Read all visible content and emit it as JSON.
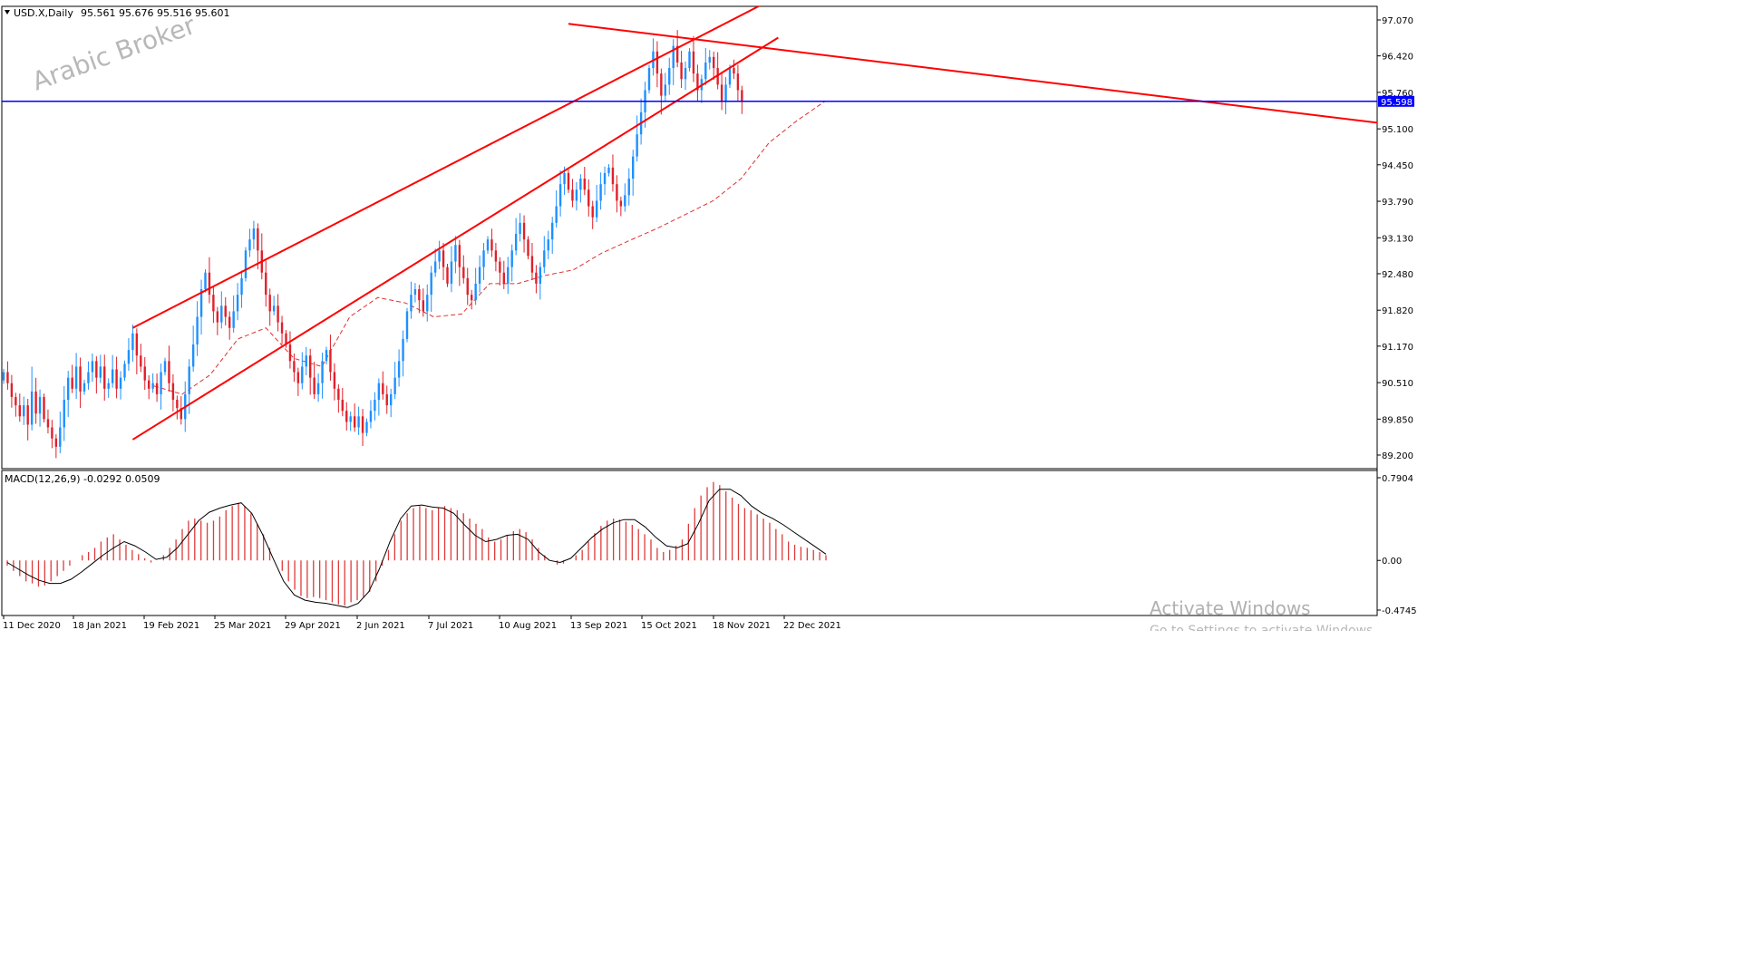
{
  "header": {
    "symbol_info": "USD.X,Daily",
    "ohlc": "95.561 95.676 95.516 95.601"
  },
  "watermark": "Arabic Broker",
  "indicator": {
    "label": "MACD(12,26,9) -0.0292 0.0509"
  },
  "windows_notice": {
    "line1": "Activate Windows",
    "line2": "Go to Settings to activate Windows."
  },
  "colors": {
    "bull_candle": "#1e90ff",
    "bear_candle": "#e0202a",
    "trendline": "#ff0000",
    "horizontal_line": "#0000ff",
    "moving_average": "#e03030",
    "macd_histogram": "#e03a3a",
    "macd_signal": "#000000",
    "price_label_bg": "#0000ff"
  },
  "chart_data": [
    {
      "type": "candlestick",
      "series_label": "USD.X,Daily",
      "open": 95.561,
      "high": 95.676,
      "low": 95.516,
      "close": 95.601,
      "y_ticks": [
        "97.070",
        "96.420",
        "95.760",
        "95.100",
        "94.450",
        "93.790",
        "93.130",
        "92.480",
        "91.820",
        "91.170",
        "90.510",
        "89.850",
        "89.200"
      ],
      "ylim": [
        89.08,
        97.28
      ],
      "x_ticks": [
        "11 Dec 2020",
        "18 Jan 2021",
        "19 Feb 2021",
        "25 Mar 2021",
        "29 Apr 2021",
        "2 Jun 2021",
        "7 Jul 2021",
        "10 Aug 2021",
        "13 Sep 2021",
        "15 Oct 2021",
        "18 Nov 2021",
        "22 Dec 2021"
      ],
      "horizontal_line": {
        "value": 95.598,
        "label": "95.598"
      },
      "trendlines": [
        {
          "name": "channel-upper",
          "points": [
            [
              32,
              91.5
            ],
            [
              192,
              97.5
            ]
          ]
        },
        {
          "name": "channel-lower",
          "points": [
            [
              32,
              89.48
            ],
            [
              192,
              96.75
            ]
          ]
        },
        {
          "name": "descending-resistance",
          "points": [
            [
              140,
              97.0
            ],
            [
              392,
              94.75
            ]
          ]
        }
      ],
      "closes": [
        90.7,
        90.5,
        90.25,
        90.1,
        89.9,
        90.1,
        89.75,
        90.35,
        89.95,
        90.25,
        89.85,
        89.7,
        89.5,
        89.35,
        89.7,
        90.2,
        90.6,
        90.4,
        90.8,
        90.35,
        90.5,
        90.7,
        90.9,
        90.6,
        90.8,
        90.4,
        90.5,
        90.75,
        90.4,
        90.6,
        90.85,
        91.1,
        91.4,
        91.0,
        90.8,
        90.55,
        90.4,
        90.5,
        90.3,
        90.7,
        90.9,
        90.5,
        90.2,
        90.05,
        89.85,
        90.3,
        90.8,
        91.2,
        91.7,
        92.2,
        92.5,
        92.1,
        91.8,
        91.6,
        91.9,
        91.7,
        91.5,
        91.8,
        92.1,
        92.4,
        92.9,
        93.1,
        93.3,
        92.9,
        92.5,
        92.1,
        91.8,
        91.9,
        91.6,
        91.4,
        91.2,
        90.9,
        90.7,
        90.5,
        90.8,
        91.0,
        90.6,
        90.3,
        90.5,
        90.9,
        91.1,
        90.7,
        90.4,
        90.2,
        90.0,
        89.8,
        89.9,
        89.7,
        89.9,
        89.6,
        89.8,
        90.0,
        90.2,
        90.5,
        90.3,
        90.1,
        90.3,
        90.6,
        90.9,
        91.3,
        91.8,
        92.1,
        92.2,
        92.0,
        91.8,
        92.1,
        92.5,
        92.7,
        92.9,
        92.6,
        92.3,
        92.7,
        93.0,
        92.6,
        92.4,
        92.1,
        92.0,
        92.3,
        92.6,
        92.9,
        93.1,
        92.9,
        92.7,
        92.5,
        92.3,
        92.6,
        92.9,
        93.2,
        93.4,
        93.1,
        92.8,
        92.5,
        92.3,
        92.6,
        92.9,
        93.1,
        93.4,
        93.7,
        94.1,
        94.3,
        94.0,
        93.8,
        94.0,
        94.2,
        94.0,
        93.7,
        93.5,
        93.8,
        94.1,
        94.3,
        94.4,
        94.1,
        93.8,
        93.7,
        93.9,
        94.2,
        94.6,
        95.0,
        95.4,
        95.8,
        96.2,
        96.5,
        96.1,
        95.7,
        95.9,
        96.2,
        96.6,
        96.3,
        96.0,
        96.2,
        96.5,
        96.1,
        95.8,
        96.0,
        96.3,
        96.4,
        96.2,
        95.9,
        95.6,
        95.9,
        96.2,
        96.1,
        95.8,
        95.601
      ],
      "ma_values": [
        90.45,
        90.3,
        90.65,
        91.3,
        91.5,
        90.95,
        90.8,
        91.7,
        92.05,
        91.95,
        91.7,
        91.75,
        92.3,
        92.3,
        92.45,
        92.55,
        92.85,
        93.08,
        93.3,
        93.55,
        93.8,
        94.2,
        94.85,
        95.25,
        95.6
      ]
    },
    {
      "type": "bar",
      "series_label": "MACD(12,26,9)",
      "main": -0.0292,
      "signal": 0.0509,
      "y_ticks": [
        "0.7904",
        "0.00",
        "-0.4745"
      ],
      "ylim": [
        -0.48,
        0.8
      ],
      "histogram": [
        -0.05,
        -0.1,
        -0.15,
        -0.2,
        -0.22,
        -0.25,
        -0.24,
        -0.2,
        -0.15,
        -0.1,
        -0.05,
        0.0,
        0.05,
        0.08,
        0.12,
        0.18,
        0.22,
        0.25,
        0.2,
        0.15,
        0.1,
        0.06,
        0.02,
        -0.02,
        0.0,
        0.05,
        0.12,
        0.2,
        0.3,
        0.38,
        0.4,
        0.38,
        0.36,
        0.38,
        0.42,
        0.48,
        0.52,
        0.55,
        0.52,
        0.45,
        0.35,
        0.25,
        0.12,
        0.0,
        -0.1,
        -0.2,
        -0.28,
        -0.34,
        -0.36,
        -0.35,
        -0.36,
        -0.38,
        -0.4,
        -0.42,
        -0.43,
        -0.4,
        -0.38,
        -0.35,
        -0.3,
        -0.2,
        -0.05,
        0.1,
        0.25,
        0.38,
        0.45,
        0.5,
        0.52,
        0.5,
        0.48,
        0.5,
        0.52,
        0.5,
        0.48,
        0.45,
        0.4,
        0.35,
        0.3,
        0.22,
        0.18,
        0.2,
        0.24,
        0.28,
        0.3,
        0.27,
        0.2,
        0.12,
        0.05,
        0.0,
        -0.04,
        -0.03,
        0.0,
        0.05,
        0.1,
        0.18,
        0.26,
        0.33,
        0.38,
        0.4,
        0.39,
        0.37,
        0.34,
        0.3,
        0.25,
        0.2,
        0.12,
        0.08,
        0.1,
        0.14,
        0.2,
        0.35,
        0.5,
        0.62,
        0.7,
        0.75,
        0.72,
        0.66,
        0.6,
        0.54,
        0.5,
        0.48,
        0.44,
        0.4,
        0.36,
        0.3,
        0.25,
        0.18,
        0.15,
        0.13,
        0.12,
        0.1,
        0.08,
        0.05
      ],
      "signal_line": [
        -0.02,
        -0.08,
        -0.14,
        -0.19,
        -0.22,
        -0.22,
        -0.18,
        -0.11,
        -0.03,
        0.05,
        0.12,
        0.18,
        0.14,
        0.08,
        0.01,
        0.03,
        0.12,
        0.25,
        0.38,
        0.46,
        0.5,
        0.53,
        0.55,
        0.45,
        0.25,
        0.02,
        -0.2,
        -0.33,
        -0.38,
        -0.4,
        -0.41,
        -0.43,
        -0.45,
        -0.41,
        -0.3,
        -0.08,
        0.18,
        0.4,
        0.52,
        0.53,
        0.51,
        0.5,
        0.45,
        0.34,
        0.24,
        0.18,
        0.2,
        0.24,
        0.25,
        0.2,
        0.08,
        0.0,
        -0.02,
        0.02,
        0.12,
        0.22,
        0.3,
        0.36,
        0.39,
        0.39,
        0.32,
        0.22,
        0.14,
        0.12,
        0.16,
        0.35,
        0.57,
        0.68,
        0.68,
        0.62,
        0.52,
        0.45,
        0.4,
        0.34,
        0.27,
        0.2,
        0.13,
        0.06
      ]
    }
  ]
}
